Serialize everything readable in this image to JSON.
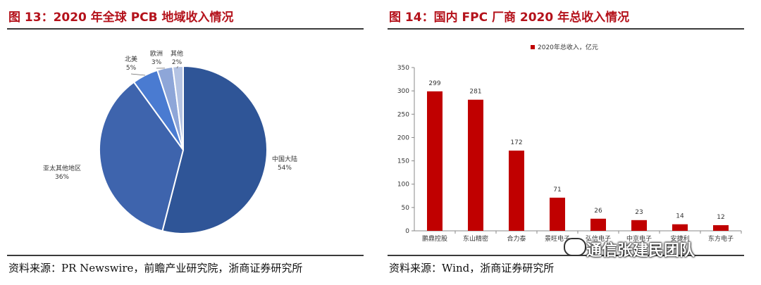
{
  "left": {
    "title": "图 13：2020 年全球 PCB 地域收入情况",
    "source": "资料来源：PR Newswire，前瞻产业研究院，浙商证券研究所"
  },
  "right": {
    "title": "图 14：国内 FPC 厂商 2020 年总收入情况",
    "source": "资料来源：Wind，浙商证券研究所"
  },
  "watermark": "通信张建民团队",
  "chart_data": [
    {
      "type": "pie",
      "slices": [
        {
          "label": "中国大陆",
          "pct_label": "54%",
          "value": 54,
          "color": "#2f5597"
        },
        {
          "label": "亚太其他地区",
          "pct_label": "36%",
          "value": 36,
          "color": "#3e64ad"
        },
        {
          "label": "北美",
          "pct_label": "5%",
          "value": 5,
          "color": "#4a7bd1"
        },
        {
          "label": "欧洲",
          "pct_label": "3%",
          "value": 3,
          "color": "#8ea6d8"
        },
        {
          "label": "其他",
          "pct_label": "2%",
          "value": 2,
          "color": "#b4c3e3"
        }
      ]
    },
    {
      "type": "bar",
      "legend": "2020年总收入，亿元",
      "color": "#c00000",
      "categories": [
        "鹏鼎控股",
        "东山精密",
        "合力泰",
        "景旺电子",
        "弘信电子",
        "中京电子",
        "安捷利",
        "东方电子"
      ],
      "values": [
        299,
        281,
        172,
        71,
        26,
        23,
        14,
        12
      ],
      "ylim": [
        0,
        350
      ],
      "yticks": [
        "0",
        "50",
        "100",
        "150",
        "200",
        "250",
        "300",
        "350"
      ]
    }
  ]
}
